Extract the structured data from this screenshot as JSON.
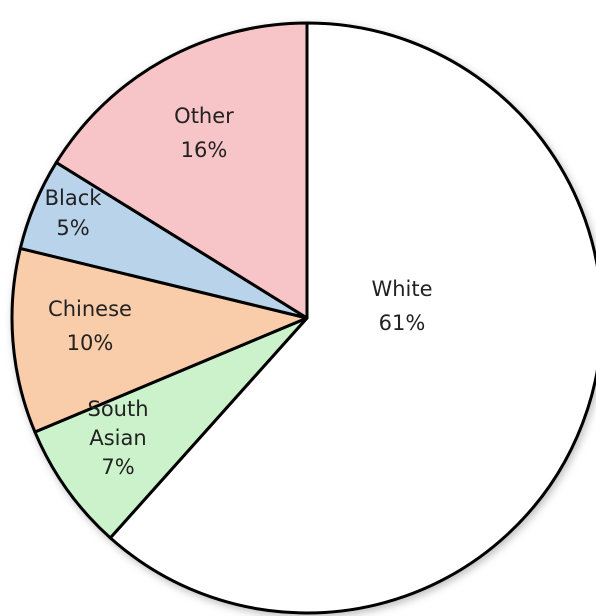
{
  "chart_data": {
    "type": "pie",
    "slices": [
      {
        "label": "White",
        "display": "61%",
        "value": 61,
        "color": "#ffffff"
      },
      {
        "label": "South Asian",
        "display": "7%",
        "value": 7,
        "color": "#ccf2cc"
      },
      {
        "label": "Chinese",
        "display": "10%",
        "value": 10,
        "color": "#f9ccaa"
      },
      {
        "label": "Black",
        "display": "5%",
        "value": 5,
        "color": "#b8d3ea"
      },
      {
        "label": "Other",
        "display": "16%",
        "value": 16,
        "color": "#f7c4c8"
      }
    ],
    "start": "12 o'clock",
    "direction": "clockwise"
  }
}
